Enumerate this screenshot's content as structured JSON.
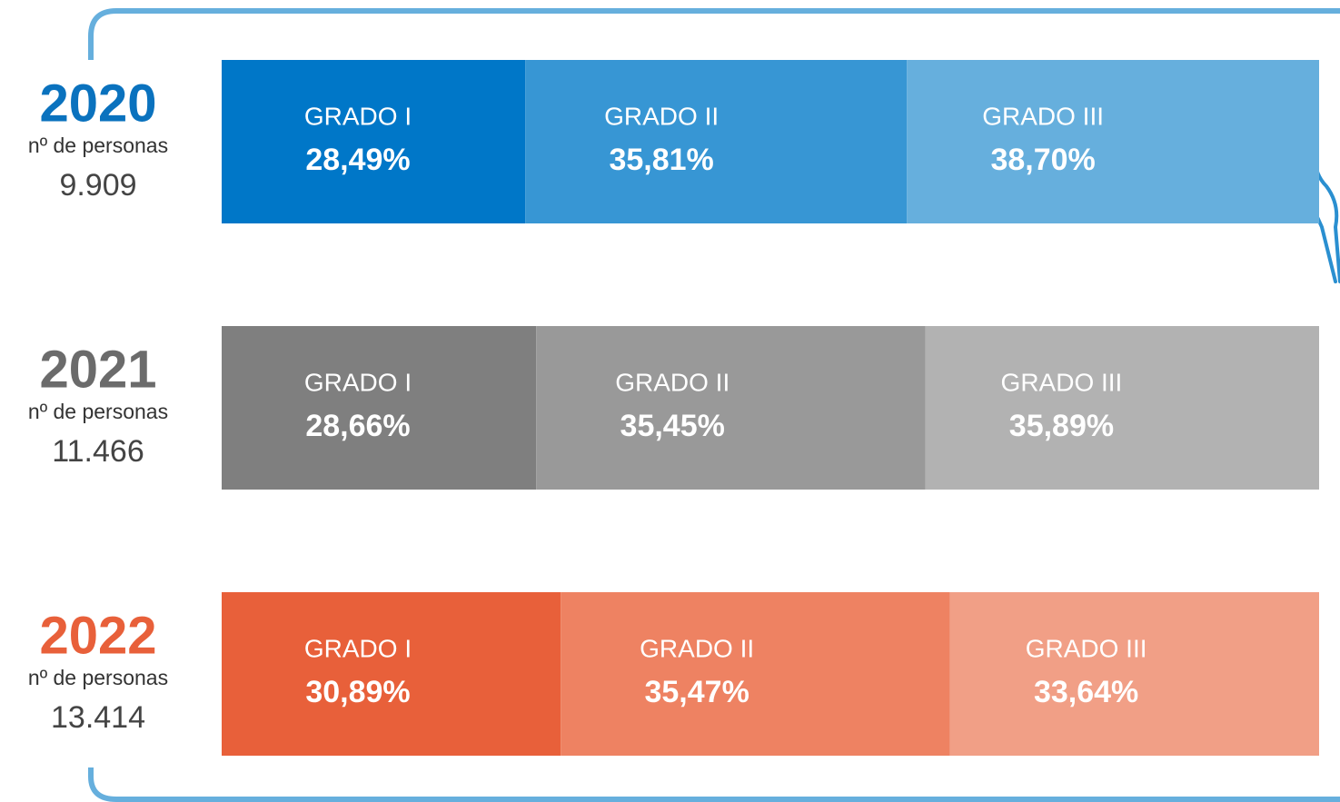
{
  "chart_data": [
    {
      "type": "bar",
      "title": "2020",
      "title_color": "#0a72be",
      "subtitle": "nº de personas",
      "total": {
        "value": 9909,
        "label": "9.909"
      },
      "categories": [
        "GRADO I",
        "GRADO II",
        "GRADO III"
      ],
      "values": [
        28.49,
        35.81,
        38.7
      ],
      "value_labels": [
        "28,49%",
        "35,81%",
        "38,70%"
      ],
      "colors": [
        "#0077c8",
        "#3796d4",
        "#66afdd"
      ]
    },
    {
      "type": "bar",
      "title": "2021",
      "title_color": "#6b6b6b",
      "subtitle": "nº de personas",
      "total": {
        "value": 11466,
        "label": "11.466"
      },
      "categories": [
        "GRADO I",
        "GRADO II",
        "GRADO III"
      ],
      "values": [
        28.66,
        35.45,
        35.89
      ],
      "value_labels": [
        "28,66%",
        "35,45%",
        "35,89%"
      ],
      "colors": [
        "#7f7f7f",
        "#999999",
        "#b2b2b2"
      ]
    },
    {
      "type": "bar",
      "title": "2022",
      "title_color": "#e8603a",
      "subtitle": "nº de personas",
      "total": {
        "value": 13414,
        "label": "13.414"
      },
      "categories": [
        "GRADO I",
        "GRADO II",
        "GRADO III"
      ],
      "values": [
        30.89,
        35.47,
        33.64
      ],
      "value_labels": [
        "30,89%",
        "35,47%",
        "33,64%"
      ],
      "colors": [
        "#e8603a",
        "#ee8262",
        "#f19f86"
      ]
    }
  ]
}
